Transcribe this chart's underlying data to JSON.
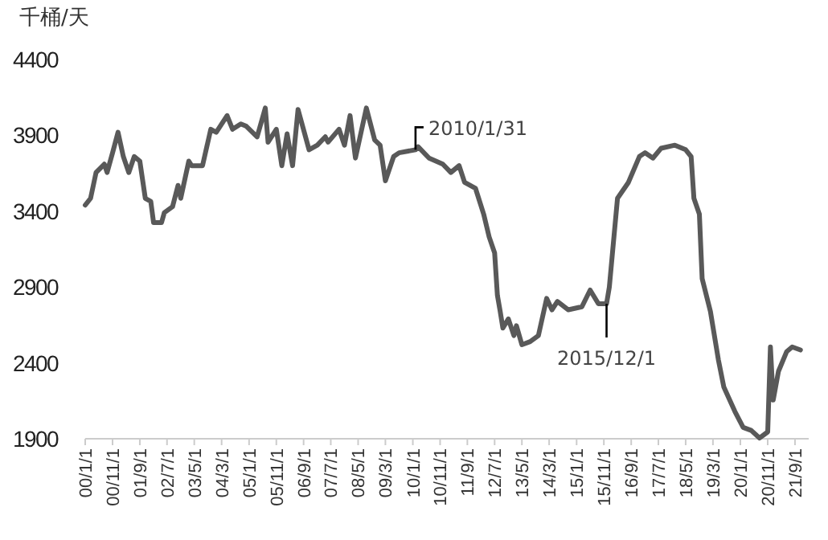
{
  "chart_data": {
    "type": "line",
    "ylabel": "千桶/天",
    "x": [
      "2000-01",
      "2000-03",
      "2000-05",
      "2000-08",
      "2000-09",
      "2000-11",
      "2001-01",
      "2001-03",
      "2001-05",
      "2001-07",
      "2001-09",
      "2001-11",
      "2002-01",
      "2002-02",
      "2002-05",
      "2002-06",
      "2002-09",
      "2002-11",
      "2002-12",
      "2003-03",
      "2003-04",
      "2003-08",
      "2003-11",
      "2004-01",
      "2004-05",
      "2004-07",
      "2004-10",
      "2004-12",
      "2005-04",
      "2005-07",
      "2005-08",
      "2005-11",
      "2006-01",
      "2006-03",
      "2006-05",
      "2006-07",
      "2006-11",
      "2007-02",
      "2007-05",
      "2007-06",
      "2007-10",
      "2007-12",
      "2008-02",
      "2008-04",
      "2008-08",
      "2008-11",
      "2009-01",
      "2009-03",
      "2009-06",
      "2009-08",
      "2010-02",
      "2010-03",
      "2010-07",
      "2010-12",
      "2011-03",
      "2011-06",
      "2011-08",
      "2011-12",
      "2012-03",
      "2012-05",
      "2012-07",
      "2012-08",
      "2012-09",
      "2012-10",
      "2012-12",
      "2013-02",
      "2013-03",
      "2013-05",
      "2013-08",
      "2013-11",
      "2014-02",
      "2014-04",
      "2014-06",
      "2014-10",
      "2015-03",
      "2015-06",
      "2015-09",
      "2015-12",
      "2016-01",
      "2016-02",
      "2016-04",
      "2016-08",
      "2016-12",
      "2017-02",
      "2017-05",
      "2017-08",
      "2018-01",
      "2018-05",
      "2018-07",
      "2018-08",
      "2018-10",
      "2018-11",
      "2019-02",
      "2019-05",
      "2019-07",
      "2019-11",
      "2020-02",
      "2020-05",
      "2020-08",
      "2020-11",
      "2020-12",
      "2021-01",
      "2021-03",
      "2021-06",
      "2021-08",
      "2021-11"
    ],
    "series": [
      {
        "color": "#595959",
        "values": [
          3440,
          3485,
          3655,
          3710,
          3655,
          3785,
          3920,
          3760,
          3655,
          3760,
          3730,
          3485,
          3465,
          3325,
          3325,
          3390,
          3430,
          3570,
          3485,
          3730,
          3700,
          3700,
          3940,
          3920,
          4030,
          3940,
          3975,
          3960,
          3890,
          4080,
          3855,
          3940,
          3700,
          3910,
          3700,
          4070,
          3805,
          3835,
          3890,
          3855,
          3940,
          3835,
          4030,
          3750,
          4080,
          3870,
          3835,
          3600,
          3760,
          3785,
          3805,
          3825,
          3750,
          3710,
          3655,
          3700,
          3590,
          3550,
          3380,
          3230,
          3125,
          2845,
          2740,
          2630,
          2690,
          2580,
          2645,
          2520,
          2540,
          2580,
          2825,
          2750,
          2805,
          2750,
          2770,
          2880,
          2790,
          2790,
          2900,
          3100,
          3485,
          3590,
          3760,
          3785,
          3750,
          3815,
          3835,
          3805,
          3760,
          3485,
          3380,
          2955,
          2740,
          2420,
          2240,
          2080,
          1975,
          1955,
          1905,
          1945,
          2505,
          2155,
          2345,
          2475,
          2505,
          2485
        ]
      }
    ],
    "xlim": [
      "2000-01",
      "2022-02"
    ],
    "xticks": [
      {
        "value": "2000-01-01",
        "label": "00/1/1"
      },
      {
        "value": "2000-11-01",
        "label": "00/11/1"
      },
      {
        "value": "2001-09-01",
        "label": "01/9/1"
      },
      {
        "value": "2002-07-01",
        "label": "02/7/1"
      },
      {
        "value": "2003-05-01",
        "label": "03/5/1"
      },
      {
        "value": "2004-03-01",
        "label": "04/3/1"
      },
      {
        "value": "2005-01-01",
        "label": "05/1/1"
      },
      {
        "value": "2005-11-01",
        "label": "05/11/1"
      },
      {
        "value": "2006-09-01",
        "label": "06/9/1"
      },
      {
        "value": "2007-07-01",
        "label": "07/7/1"
      },
      {
        "value": "2008-05-01",
        "label": "08/5/1"
      },
      {
        "value": "2009-03-01",
        "label": "09/3/1"
      },
      {
        "value": "2010-01-01",
        "label": "10/1/1"
      },
      {
        "value": "2010-11-01",
        "label": "10/11/1"
      },
      {
        "value": "2011-09-01",
        "label": "11/9/1"
      },
      {
        "value": "2012-07-01",
        "label": "12/7/1"
      },
      {
        "value": "2013-05-01",
        "label": "13/5/1"
      },
      {
        "value": "2014-03-01",
        "label": "14/3/1"
      },
      {
        "value": "2015-01-01",
        "label": "15/1/1"
      },
      {
        "value": "2015-11-01",
        "label": "15/11/1"
      },
      {
        "value": "2016-09-01",
        "label": "16/9/1"
      },
      {
        "value": "2017-07-01",
        "label": "17/7/1"
      },
      {
        "value": "2018-05-01",
        "label": "18/5/1"
      },
      {
        "value": "2019-03-01",
        "label": "19/3/1"
      },
      {
        "value": "2020-01-01",
        "label": "20/1/1"
      },
      {
        "value": "2020-11-01",
        "label": "20/11/1"
      },
      {
        "value": "2021-09-01",
        "label": "21/9/1"
      }
    ],
    "ylim": [
      1900,
      4400
    ],
    "yticks": [
      1900,
      2400,
      2900,
      3400,
      3900,
      4400
    ],
    "grid": false,
    "marker": "none",
    "line_style": "solid",
    "annotations": [
      {
        "text": "2010/1/31",
        "x": "2010-01-31",
        "y": 3805
      },
      {
        "text": "2015/12/1",
        "x": "2015-12-01",
        "y": 2790
      }
    ]
  }
}
